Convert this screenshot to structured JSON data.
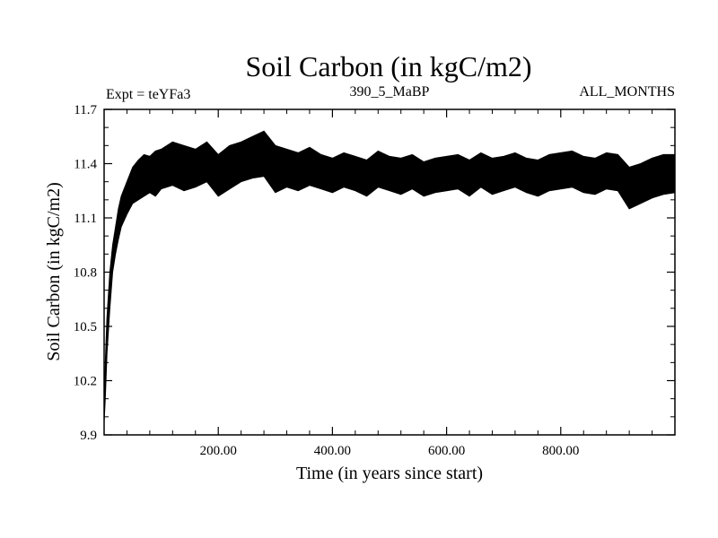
{
  "chart_data": {
    "type": "line",
    "title": "Soil Carbon (in kgC/m2)",
    "subtitle_left": "Expt = teYFa3",
    "subtitle_center": "390_5_MaBP",
    "subtitle_right": "ALL_MONTHS",
    "xlabel": "Time (in years since start)",
    "ylabel": "Soil Carbon (in kgC/m2)",
    "xlim": [
      0,
      1000
    ],
    "ylim": [
      9.9,
      11.7
    ],
    "x_ticks": [
      200,
      400,
      600,
      800
    ],
    "x_tick_labels": [
      "200.00",
      "400.00",
      "600.00",
      "800.00"
    ],
    "y_ticks": [
      9.9,
      10.2,
      10.5,
      10.8,
      11.1,
      11.4,
      11.7
    ],
    "y_tick_labels": [
      "9.9",
      "10.2",
      "10.5",
      "10.8",
      "11.1",
      "11.4",
      "11.7"
    ],
    "grid": false,
    "line_color": "#000000",
    "series": [
      {
        "x": [
          0,
          2,
          5,
          10,
          15,
          20,
          25,
          30,
          40,
          50,
          60,
          70,
          80,
          90,
          100,
          120,
          140,
          160,
          180,
          200,
          220,
          240,
          260,
          280,
          300,
          320,
          340,
          360,
          380,
          400,
          420,
          440,
          460,
          480,
          500,
          520,
          540,
          560,
          580,
          600,
          620,
          640,
          660,
          680,
          700,
          720,
          740,
          760,
          780,
          800,
          820,
          840,
          860,
          880,
          900,
          920,
          940,
          960,
          980,
          1000
        ],
        "upper": [
          10.05,
          10.3,
          10.55,
          10.8,
          10.95,
          11.05,
          11.15,
          11.22,
          11.3,
          11.38,
          11.42,
          11.45,
          11.44,
          11.47,
          11.48,
          11.52,
          11.5,
          11.48,
          11.52,
          11.45,
          11.5,
          11.52,
          11.55,
          11.58,
          11.5,
          11.48,
          11.46,
          11.49,
          11.45,
          11.43,
          11.46,
          11.44,
          11.42,
          11.47,
          11.44,
          11.43,
          11.45,
          11.41,
          11.43,
          11.44,
          11.45,
          11.42,
          11.46,
          11.43,
          11.44,
          11.46,
          11.43,
          11.42,
          11.45,
          11.46,
          11.47,
          11.44,
          11.43,
          11.46,
          11.45,
          11.38,
          11.4,
          11.43,
          11.45,
          11.45
        ],
        "lower": [
          9.97,
          10.1,
          10.35,
          10.6,
          10.8,
          10.9,
          10.98,
          11.05,
          11.12,
          11.18,
          11.2,
          11.22,
          11.24,
          11.22,
          11.26,
          11.28,
          11.25,
          11.27,
          11.3,
          11.22,
          11.26,
          11.3,
          11.32,
          11.33,
          11.24,
          11.27,
          11.25,
          11.28,
          11.26,
          11.24,
          11.27,
          11.25,
          11.22,
          11.27,
          11.25,
          11.23,
          11.26,
          11.22,
          11.24,
          11.25,
          11.26,
          11.22,
          11.27,
          11.23,
          11.25,
          11.27,
          11.24,
          11.22,
          11.25,
          11.26,
          11.27,
          11.24,
          11.23,
          11.26,
          11.25,
          11.15,
          11.18,
          11.21,
          11.23,
          11.24
        ]
      }
    ]
  }
}
